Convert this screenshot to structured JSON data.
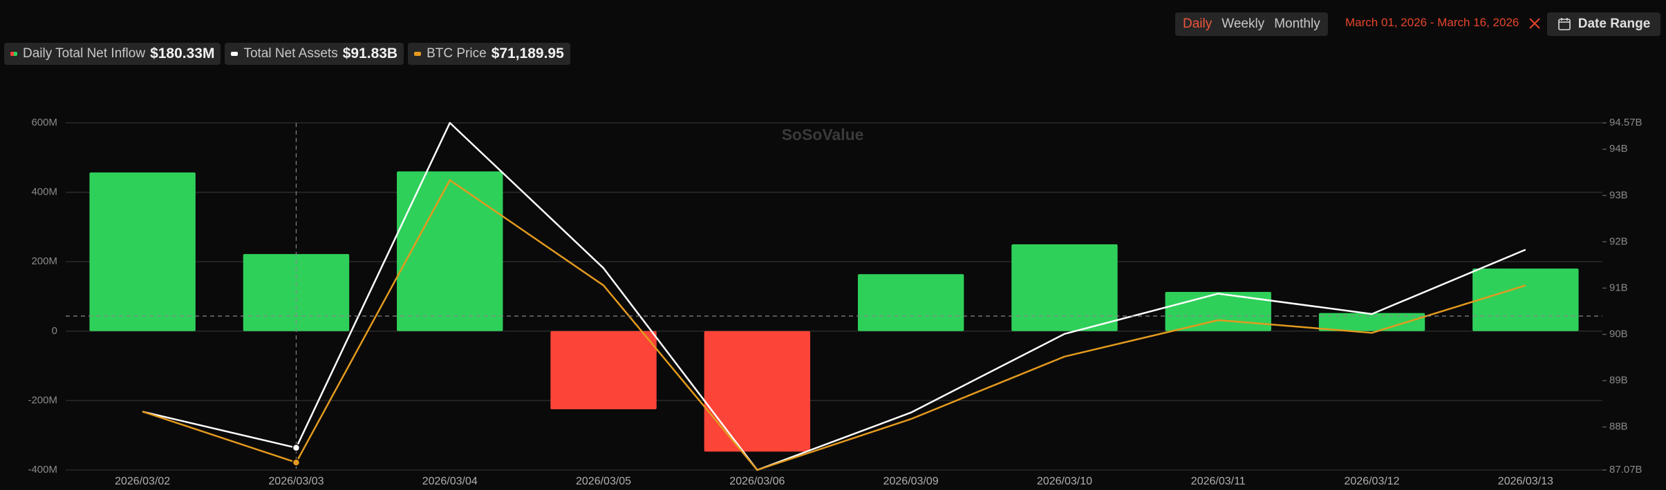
{
  "chart_data": {
    "type": "combo",
    "watermark": "SoSoValue",
    "controls": {
      "tabs": [
        "Daily",
        "Weekly",
        "Monthly"
      ],
      "date_range": "March 01, 2026 - March 16, 2026",
      "button": "Date Range"
    },
    "categories": [
      "2026/03/02",
      "2026/03/03",
      "2026/03/04",
      "2026/03/05",
      "2026/03/06",
      "2026/03/09",
      "2026/03/10",
      "2026/03/11",
      "2026/03/12",
      "2026/03/13"
    ],
    "series": [
      {
        "name": "Daily Total Net Inflow",
        "legend_value": "$180.33M",
        "type": "bar",
        "color": "#2fd05a",
        "negative_color": "#fd4438",
        "values": [
          457,
          222,
          460,
          -225,
          -347,
          164,
          250,
          113,
          52,
          180.33
        ]
      },
      {
        "name": "Total Net Assets",
        "legend_value": "$91.83B",
        "type": "line",
        "color": "#ffffff",
        "axis": "y2",
        "values": [
          88.33,
          87.55,
          94.57,
          91.43,
          87.07,
          88.31,
          90.01,
          90.88,
          90.44,
          91.83
        ]
      },
      {
        "name": "BTC Price",
        "legend_value": "$71,189.95",
        "type": "line",
        "color": "#e39a1e",
        "axis": "y3",
        "values": [
          69010,
          68130,
          73010,
          71190,
          68000,
          68880,
          69960,
          70590,
          70370,
          71189.95
        ]
      }
    ],
    "ylim": [
      -400,
      600
    ],
    "yticks": [
      {
        "value": -400,
        "label": "-400M"
      },
      {
        "value": -200,
        "label": "-200M"
      },
      0,
      {
        "value": 200,
        "label": "200M"
      },
      {
        "value": 400,
        "label": "400M"
      },
      {
        "value": 600,
        "label": "600M"
      }
    ],
    "y2lim": [
      87.07,
      94.57
    ],
    "y2ticks": [
      {
        "value": 87.07,
        "label": "87.07B"
      },
      {
        "value": 88,
        "label": "88B"
      },
      {
        "value": 89,
        "label": "89B"
      },
      {
        "value": 90,
        "label": "90B"
      },
      {
        "value": 91,
        "label": "91B"
      },
      {
        "value": 92,
        "label": "92B"
      },
      {
        "value": 93,
        "label": "93B"
      },
      {
        "value": 94,
        "label": "94B"
      },
      {
        "value": 94.57,
        "label": "94.57B"
      }
    ],
    "y3lim": [
      68000,
      74000
    ],
    "grid": true
  }
}
